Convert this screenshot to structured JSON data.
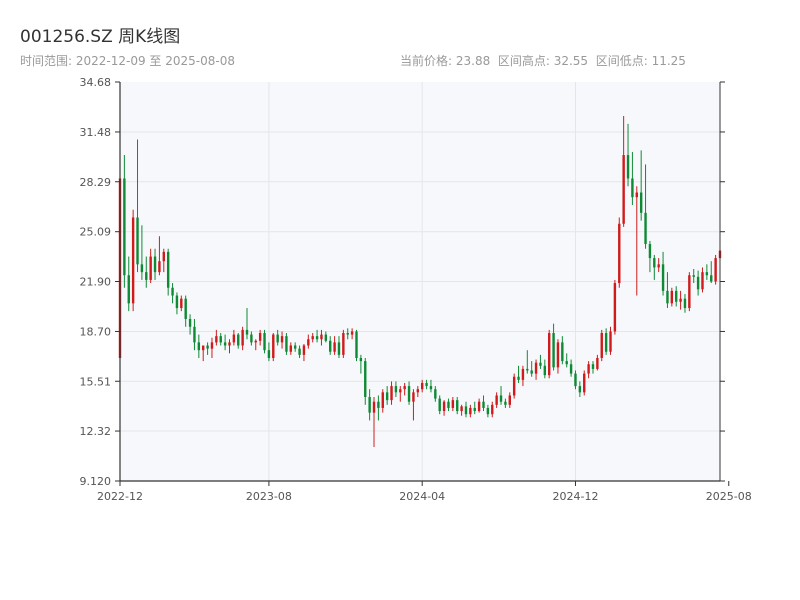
{
  "header": {
    "title": "001256.SZ 周K线图",
    "range_label": "时间范围: 2022-12-09 至 2025-08-08",
    "current_label": "当前价格: 23.88",
    "high_label": "区间高点: 32.55",
    "low_label": "区间低点: 11.25"
  },
  "colors": {
    "up": "#cf1b1b",
    "down": "#0e8a35",
    "plot_bg": "#f7f8fb",
    "grid": "#e4e6ea",
    "axis": "#333333"
  },
  "chart_data": {
    "type": "candlestick",
    "title": "001256.SZ 周K线图",
    "y_ticks": [
      "9.120",
      "12.32",
      "15.51",
      "18.70",
      "21.90",
      "25.09",
      "28.29",
      "31.48",
      "34.68"
    ],
    "ylim": [
      9.12,
      34.68
    ],
    "x_ticks": [
      "2022-12",
      "2023-08",
      "2024-04",
      "2024-12",
      "2025-08"
    ],
    "x_tick_weeks": [
      0,
      34,
      69,
      104,
      139
    ],
    "grid": true,
    "candles": [
      [
        17.0,
        29.0,
        16.2,
        28.5
      ],
      [
        28.5,
        30.0,
        21.5,
        22.3
      ],
      [
        22.3,
        23.5,
        20.0,
        20.5
      ],
      [
        20.5,
        26.5,
        20.0,
        26.0
      ],
      [
        26.0,
        31.0,
        22.5,
        23.0
      ],
      [
        23.0,
        25.5,
        22.0,
        22.5
      ],
      [
        22.5,
        23.5,
        21.5,
        22.0
      ],
      [
        22.0,
        24.0,
        21.8,
        23.5
      ],
      [
        23.5,
        24.0,
        22.0,
        22.5
      ],
      [
        22.5,
        24.8,
        22.3,
        23.2
      ],
      [
        23.2,
        24.0,
        22.5,
        23.8
      ],
      [
        23.8,
        24.0,
        21.0,
        21.5
      ],
      [
        21.5,
        21.8,
        20.5,
        21.0
      ],
      [
        21.0,
        21.2,
        19.8,
        20.2
      ],
      [
        20.2,
        21.0,
        20.0,
        20.8
      ],
      [
        20.8,
        21.0,
        19.0,
        19.5
      ],
      [
        19.5,
        19.8,
        18.5,
        19.0
      ],
      [
        19.0,
        19.5,
        17.5,
        18.0
      ],
      [
        18.0,
        18.5,
        17.0,
        17.5
      ],
      [
        17.5,
        17.8,
        16.8,
        17.8
      ],
      [
        17.8,
        18.0,
        17.2,
        17.6
      ],
      [
        17.6,
        18.3,
        17.0,
        18.0
      ],
      [
        18.0,
        18.8,
        17.8,
        18.4
      ],
      [
        18.4,
        18.6,
        17.8,
        18.0
      ],
      [
        18.0,
        18.5,
        17.5,
        17.8
      ],
      [
        17.8,
        18.2,
        17.3,
        18.0
      ],
      [
        18.0,
        18.8,
        17.8,
        18.5
      ],
      [
        18.5,
        18.6,
        17.6,
        17.8
      ],
      [
        17.8,
        19.0,
        17.5,
        18.8
      ],
      [
        18.8,
        20.2,
        18.2,
        18.5
      ],
      [
        18.5,
        18.7,
        17.8,
        18.0
      ],
      [
        18.0,
        18.2,
        17.5,
        18.1
      ],
      [
        18.1,
        18.8,
        17.8,
        18.6
      ],
      [
        18.6,
        18.8,
        17.3,
        17.5
      ],
      [
        17.5,
        18.0,
        16.8,
        17.0
      ],
      [
        17.0,
        18.6,
        16.8,
        18.5
      ],
      [
        18.5,
        18.8,
        17.8,
        18.0
      ],
      [
        18.0,
        18.7,
        17.6,
        18.4
      ],
      [
        18.4,
        18.6,
        17.2,
        17.4
      ],
      [
        17.4,
        18.0,
        17.2,
        17.8
      ],
      [
        17.8,
        18.0,
        17.4,
        17.6
      ],
      [
        17.6,
        17.8,
        17.0,
        17.2
      ],
      [
        17.2,
        17.9,
        16.8,
        17.8
      ],
      [
        17.8,
        18.5,
        17.6,
        18.2
      ],
      [
        18.2,
        18.6,
        18.0,
        18.4
      ],
      [
        18.4,
        18.8,
        18.0,
        18.2
      ],
      [
        18.2,
        18.8,
        17.8,
        18.5
      ],
      [
        18.5,
        18.7,
        18.0,
        18.1
      ],
      [
        18.1,
        18.4,
        17.2,
        17.4
      ],
      [
        17.4,
        18.4,
        17.2,
        18.0
      ],
      [
        18.0,
        18.4,
        17.0,
        17.2
      ],
      [
        17.2,
        18.8,
        17.0,
        18.6
      ],
      [
        18.6,
        18.9,
        18.2,
        18.5
      ],
      [
        18.5,
        18.9,
        18.2,
        18.7
      ],
      [
        18.7,
        18.8,
        16.8,
        17.0
      ],
      [
        17.0,
        17.2,
        16.0,
        16.8
      ],
      [
        16.8,
        17.0,
        14.0,
        14.5
      ],
      [
        14.5,
        15.0,
        13.0,
        13.5
      ],
      [
        13.5,
        14.5,
        11.3,
        14.2
      ],
      [
        14.2,
        14.6,
        13.0,
        13.8
      ],
      [
        13.8,
        15.0,
        13.5,
        14.8
      ],
      [
        14.8,
        15.2,
        14.0,
        14.3
      ],
      [
        14.3,
        15.5,
        14.0,
        15.2
      ],
      [
        15.2,
        15.5,
        14.5,
        14.8
      ],
      [
        14.8,
        15.2,
        14.2,
        15.0
      ],
      [
        15.0,
        15.4,
        14.6,
        15.2
      ],
      [
        15.2,
        15.5,
        14.0,
        14.2
      ],
      [
        14.2,
        15.0,
        13.0,
        14.8
      ],
      [
        14.8,
        15.2,
        14.5,
        15.0
      ],
      [
        15.0,
        15.6,
        14.8,
        15.4
      ],
      [
        15.4,
        15.6,
        15.0,
        15.2
      ],
      [
        15.2,
        15.6,
        14.8,
        15.0
      ],
      [
        15.0,
        15.2,
        14.2,
        14.4
      ],
      [
        14.4,
        14.6,
        13.4,
        13.6
      ],
      [
        13.6,
        14.3,
        13.3,
        14.2
      ],
      [
        14.2,
        14.4,
        13.6,
        13.8
      ],
      [
        13.8,
        14.5,
        13.6,
        14.3
      ],
      [
        14.3,
        14.5,
        13.4,
        13.6
      ],
      [
        13.6,
        14.0,
        13.3,
        13.9
      ],
      [
        13.9,
        14.2,
        13.2,
        13.4
      ],
      [
        13.4,
        14.0,
        13.2,
        13.8
      ],
      [
        13.8,
        14.2,
        13.4,
        13.6
      ],
      [
        13.6,
        14.4,
        13.5,
        14.2
      ],
      [
        14.2,
        14.6,
        13.6,
        13.8
      ],
      [
        13.8,
        14.0,
        13.2,
        13.4
      ],
      [
        13.4,
        14.2,
        13.2,
        14.0
      ],
      [
        14.0,
        14.8,
        13.8,
        14.6
      ],
      [
        14.6,
        15.2,
        14.0,
        14.2
      ],
      [
        14.2,
        14.4,
        13.8,
        14.0
      ],
      [
        14.0,
        14.8,
        13.8,
        14.6
      ],
      [
        14.6,
        16.0,
        14.4,
        15.8
      ],
      [
        15.8,
        16.5,
        15.4,
        15.6
      ],
      [
        15.6,
        16.5,
        15.2,
        16.3
      ],
      [
        16.3,
        17.5,
        16.0,
        16.2
      ],
      [
        16.2,
        16.8,
        15.8,
        16.0
      ],
      [
        16.0,
        16.9,
        15.6,
        16.7
      ],
      [
        16.7,
        17.2,
        16.3,
        16.5
      ],
      [
        16.5,
        16.9,
        15.7,
        15.9
      ],
      [
        15.9,
        18.8,
        15.7,
        18.6
      ],
      [
        18.6,
        19.2,
        16.2,
        16.4
      ],
      [
        16.4,
        18.2,
        16.0,
        18.0
      ],
      [
        18.0,
        18.4,
        16.6,
        16.8
      ],
      [
        16.8,
        17.3,
        16.4,
        16.6
      ],
      [
        16.6,
        16.9,
        15.8,
        16.0
      ],
      [
        16.0,
        16.2,
        15.0,
        15.2
      ],
      [
        15.2,
        15.5,
        14.5,
        14.8
      ],
      [
        14.8,
        16.2,
        14.6,
        16.0
      ],
      [
        16.0,
        16.8,
        15.7,
        16.6
      ],
      [
        16.6,
        16.8,
        16.0,
        16.3
      ],
      [
        16.3,
        17.2,
        16.2,
        17.0
      ],
      [
        17.0,
        18.8,
        16.8,
        18.6
      ],
      [
        18.6,
        18.9,
        17.2,
        17.4
      ],
      [
        17.4,
        19.0,
        17.2,
        18.7
      ],
      [
        18.7,
        22.0,
        18.5,
        21.8
      ],
      [
        21.8,
        26.0,
        21.5,
        25.6
      ],
      [
        25.6,
        32.5,
        25.4,
        30.0
      ],
      [
        30.0,
        32.0,
        28.0,
        28.5
      ],
      [
        28.5,
        30.2,
        26.8,
        27.3
      ],
      [
        27.3,
        28.0,
        21.0,
        27.6
      ],
      [
        27.6,
        30.3,
        25.8,
        26.3
      ],
      [
        26.3,
        29.4,
        24.0,
        24.3
      ],
      [
        24.3,
        24.5,
        22.5,
        23.4
      ],
      [
        23.4,
        23.6,
        22.0,
        22.8
      ],
      [
        22.8,
        23.4,
        22.5,
        23.0
      ],
      [
        23.0,
        23.8,
        21.0,
        21.3
      ],
      [
        21.3,
        22.5,
        20.2,
        20.5
      ],
      [
        20.5,
        21.5,
        20.3,
        21.3
      ],
      [
        21.3,
        21.6,
        20.3,
        20.6
      ],
      [
        20.6,
        21.3,
        20.1,
        20.8
      ],
      [
        20.8,
        21.1,
        19.9,
        20.2
      ],
      [
        20.2,
        22.5,
        20.0,
        22.3
      ],
      [
        22.3,
        22.7,
        21.8,
        22.2
      ],
      [
        22.2,
        22.6,
        21.0,
        21.4
      ],
      [
        21.4,
        22.8,
        21.2,
        22.5
      ],
      [
        22.5,
        23.0,
        22.0,
        22.3
      ],
      [
        22.3,
        23.2,
        21.8,
        21.9
      ],
      [
        21.9,
        23.6,
        21.7,
        23.4
      ],
      [
        23.4,
        24.8,
        23.0,
        23.88
      ]
    ]
  }
}
